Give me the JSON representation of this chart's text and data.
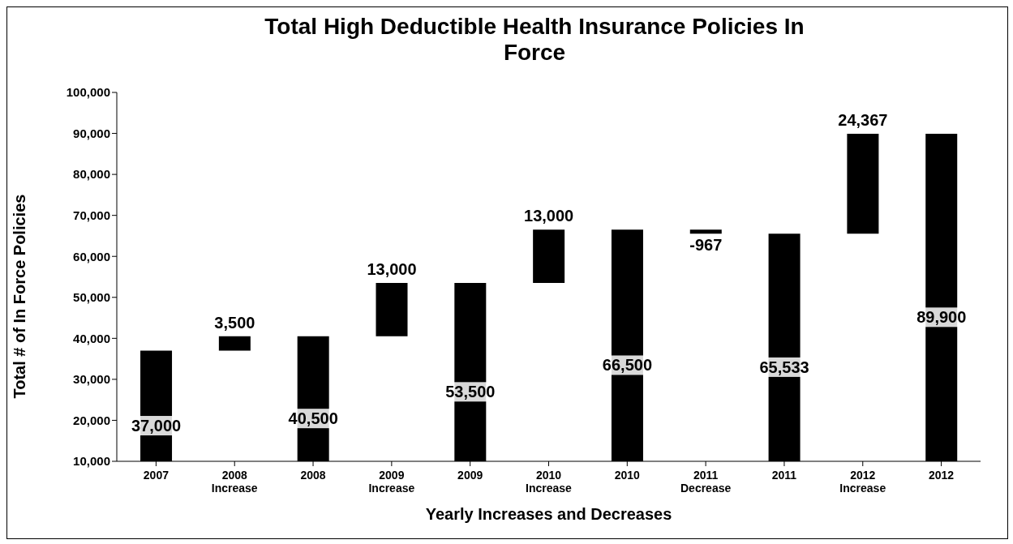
{
  "chart_data": {
    "type": "bar",
    "title": "Total High Deductible Health Insurance Policies In Force",
    "xlabel": "Yearly Increases and Decreases",
    "ylabel": "Total # of In Force Policies",
    "categories": [
      "2007",
      "2008 Increase",
      "2008",
      "2009 Increase",
      "2009",
      "2010 Increase",
      "2010",
      "2011 Decrease",
      "2011",
      "2012 Increase",
      "2012"
    ],
    "values": [
      37000,
      3500,
      40500,
      13000,
      53500,
      13000,
      66500,
      -967,
      65533,
      24367,
      89900
    ],
    "value_labels": [
      "37,000",
      "3,500",
      "40,500",
      "13,000",
      "53,500",
      "13,000",
      "66,500",
      "-967",
      "65,533",
      "24,367",
      "89,900"
    ],
    "base": [
      null,
      37000,
      null,
      40500,
      null,
      53500,
      null,
      66500,
      null,
      65533,
      null
    ],
    "color": "#000000",
    "ylim": [
      10000,
      100000
    ],
    "yticks": [
      {
        "value": 10000,
        "label": "10,000"
      },
      {
        "value": 20000,
        "label": "20,000"
      },
      {
        "value": 30000,
        "label": "30,000"
      },
      {
        "value": 40000,
        "label": "40,000"
      },
      {
        "value": 50000,
        "label": "50,000"
      },
      {
        "value": 60000,
        "label": "60,000"
      },
      {
        "value": 70000,
        "label": "70,000"
      },
      {
        "value": 80000,
        "label": "80,000"
      },
      {
        "value": 90000,
        "label": "90,000"
      },
      {
        "value": 100000,
        "label": "100,000"
      }
    ]
  }
}
